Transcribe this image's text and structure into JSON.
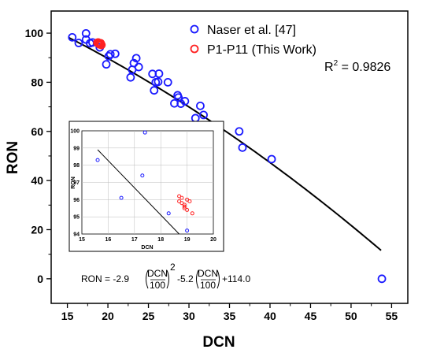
{
  "chart_data": [
    {
      "type": "scatter",
      "xlabel": "DCN",
      "ylabel": "RON",
      "xlim": [
        13,
        57
      ],
      "ylim": [
        -10,
        109
      ],
      "xticks": [
        15,
        20,
        25,
        30,
        35,
        40,
        45,
        50,
        55
      ],
      "yticks": [
        0,
        20,
        40,
        60,
        80,
        100
      ],
      "legend_position": "top-right",
      "series": [
        {
          "name": "Naser et al. [47]",
          "color": "#1a1aff",
          "marker": "circle",
          "x": [
            15.6,
            16.4,
            17.3,
            17.3,
            17.8,
            18.1,
            19.0,
            19.8,
            20.1,
            20.3,
            20.9,
            22.8,
            23.0,
            23.2,
            23.5,
            23.8,
            25.5,
            25.7,
            25.9,
            26.2,
            26.3,
            27.4,
            28.2,
            28.6,
            28.7,
            29.0,
            29.5,
            30.8,
            31.4,
            31.8,
            33.7,
            36.2,
            36.6,
            40.2,
            53.8
          ],
          "y": [
            98.3,
            96.0,
            99.9,
            97.4,
            95.9,
            96.2,
            94.2,
            87.3,
            90.6,
            91.4,
            91.6,
            82.0,
            85.1,
            87.8,
            89.8,
            86.2,
            83.4,
            76.7,
            80.0,
            80.2,
            83.5,
            80.0,
            71.4,
            74.7,
            73.8,
            71.3,
            72.3,
            65.4,
            70.4,
            66.7,
            59.6,
            60.0,
            53.4,
            48.7,
            0.0
          ]
        },
        {
          "name": "P1-P11 (This Work)",
          "color": "#ff2020",
          "marker": "circle",
          "x": [
            18.7,
            18.8,
            18.9,
            18.9,
            18.9,
            19.0,
            19.0,
            19.1,
            19.0,
            19.1,
            19.2
          ],
          "y": [
            96.1,
            96.2,
            95.8,
            95.6,
            95.9,
            95.5,
            95.4,
            95.9,
            95.6,
            95.8,
            95.2
          ]
        }
      ],
      "fit": {
        "coefficients": [
          -2.9,
          -5.2,
          114.0
        ],
        "x_range": [
          15.2,
          54.0
        ],
        "color": "#000000"
      },
      "annotations": {
        "r2_prefix": "R",
        "r2_exponent": "2",
        "r2_value": " = 0.9826",
        "equation": {
          "lhs": "RON = -2.9",
          "fraction_numerator": "DCN",
          "fraction_denominator": "100",
          "exponent": "2",
          "middle": "-5.2",
          "tail": "+114.0"
        }
      }
    },
    {
      "type": "scatter",
      "position": "inset",
      "xlabel": "DCN",
      "ylabel": "RON",
      "xlim": [
        15,
        20
      ],
      "ylim": [
        94,
        100
      ],
      "xticks": [
        15,
        16,
        17,
        18,
        19,
        20
      ],
      "yticks": [
        94,
        95,
        96,
        97,
        98,
        99,
        100
      ],
      "series": [
        {
          "name": "Naser et al. [47]",
          "color": "#1a1aff",
          "x": [
            15.6,
            16.5,
            17.3,
            17.4,
            18.3,
            19.0
          ],
          "y": [
            98.3,
            96.1,
            97.4,
            99.9,
            95.2,
            94.2
          ]
        },
        {
          "name": "P1-P11 (This Work)",
          "color": "#ff2020",
          "x": [
            18.7,
            18.8,
            18.8,
            18.9,
            18.9,
            19.0,
            19.0,
            19.1,
            19.2,
            18.7,
            18.9
          ],
          "y": [
            95.9,
            96.1,
            95.8,
            95.5,
            95.7,
            96.0,
            95.4,
            95.9,
            95.2,
            96.2,
            95.6
          ]
        }
      ],
      "fit": {
        "x_range": [
          15.6,
          18.7
        ]
      }
    }
  ]
}
